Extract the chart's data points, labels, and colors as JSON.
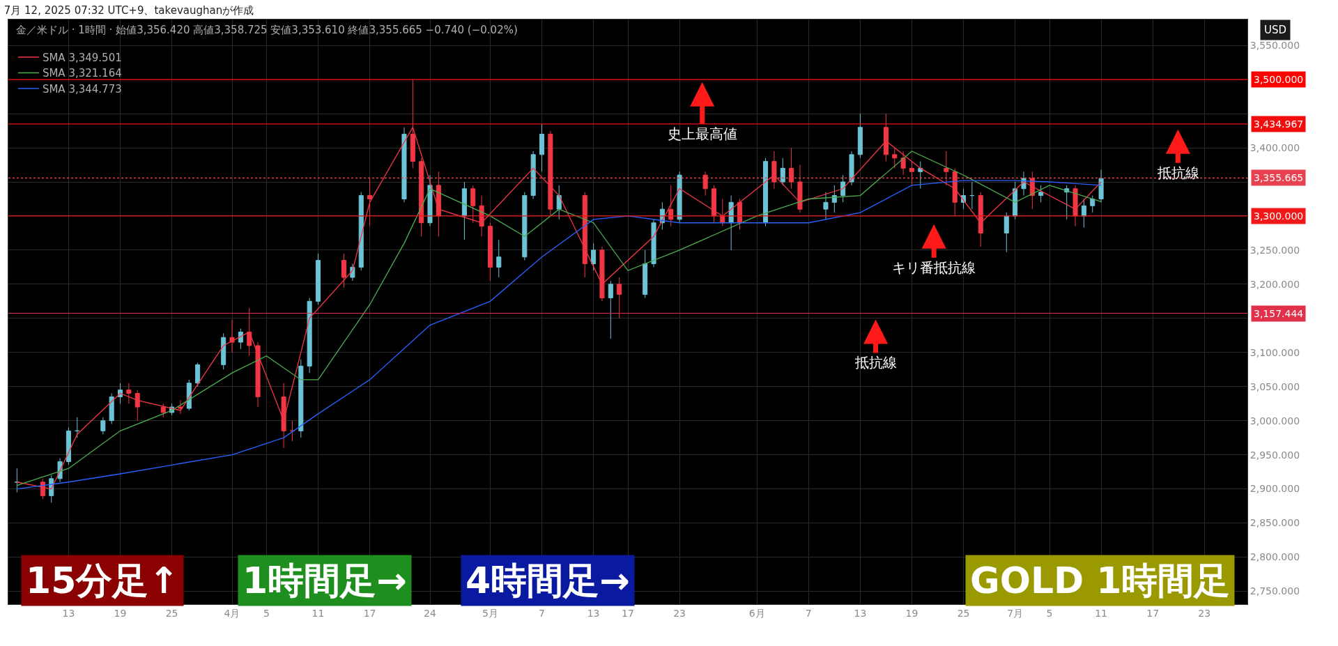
{
  "chart_data": {
    "type": "candlestick",
    "title": "7月 12, 2025 07:32 UTC+9、takevaughanが作成",
    "subtitle": "金／米ドル · 1時間 · 始値3,356.420 高値3,358.725 安値3,353.610 終値3,355.665 −0.740 (−0.02%)",
    "ylabel": "USD",
    "x": [
      "2025-03-07",
      "2025-03-10",
      "2025-03-11",
      "2025-03-12",
      "2025-03-13",
      "2025-03-14",
      "2025-03-17",
      "2025-03-18",
      "2025-03-19",
      "2025-03-20",
      "2025-03-21",
      "2025-03-24",
      "2025-03-25",
      "2025-03-26",
      "2025-03-27",
      "2025-03-28",
      "2025-03-31",
      "2025-04-01",
      "2025-04-02",
      "2025-04-03",
      "2025-04-04",
      "2025-04-07",
      "2025-04-08",
      "2025-04-09",
      "2025-04-10",
      "2025-04-11",
      "2025-04-14",
      "2025-04-15",
      "2025-04-16",
      "2025-04-17",
      "2025-04-21",
      "2025-04-22",
      "2025-04-23",
      "2025-04-24",
      "2025-04-25",
      "2025-04-28",
      "2025-04-29",
      "2025-04-30",
      "2025-05-01",
      "2025-05-02",
      "2025-05-05",
      "2025-05-06",
      "2025-05-07",
      "2025-05-08",
      "2025-05-09",
      "2025-05-12",
      "2025-05-13",
      "2025-05-14",
      "2025-05-15",
      "2025-05-16",
      "2025-05-19",
      "2025-05-20",
      "2025-05-21",
      "2025-05-22",
      "2025-05-23",
      "2025-05-26",
      "2025-05-27",
      "2025-05-28",
      "2025-05-29",
      "2025-05-30",
      "2025-06-02",
      "2025-06-03",
      "2025-06-04",
      "2025-06-05",
      "2025-06-06",
      "2025-06-09",
      "2025-06-10",
      "2025-06-11",
      "2025-06-12",
      "2025-06-13",
      "2025-06-16",
      "2025-06-17",
      "2025-06-18",
      "2025-06-19",
      "2025-06-20",
      "2025-06-23",
      "2025-06-24",
      "2025-06-25",
      "2025-06-26",
      "2025-06-27",
      "2025-06-30",
      "2025-07-01",
      "2025-07-02",
      "2025-07-03",
      "2025-07-04",
      "2025-07-07",
      "2025-07-08",
      "2025-07-09",
      "2025-07-10",
      "2025-07-11"
    ],
    "ohlc": [
      [
        2910,
        2930,
        2895,
        2910
      ],
      [
        2910,
        2915,
        2885,
        2890
      ],
      [
        2890,
        2920,
        2880,
        2915
      ],
      [
        2915,
        2945,
        2910,
        2940
      ],
      [
        2940,
        2990,
        2935,
        2985
      ],
      [
        2985,
        3005,
        2975,
        2985
      ],
      [
        2985,
        3005,
        2980,
        3000
      ],
      [
        3000,
        3040,
        2995,
        3035
      ],
      [
        3035,
        3055,
        3025,
        3045
      ],
      [
        3045,
        3055,
        3025,
        3040
      ],
      [
        3040,
        3045,
        3000,
        3020
      ],
      [
        3020,
        3025,
        3005,
        3012
      ],
      [
        3012,
        3025,
        3008,
        3020
      ],
      [
        3020,
        3030,
        3010,
        3018
      ],
      [
        3018,
        3060,
        3015,
        3055
      ],
      [
        3055,
        3085,
        3050,
        3082
      ],
      [
        3082,
        3128,
        3075,
        3122
      ],
      [
        3122,
        3148,
        3100,
        3115
      ],
      [
        3115,
        3135,
        3105,
        3130
      ],
      [
        3130,
        3165,
        3095,
        3110
      ],
      [
        3110,
        3115,
        3020,
        3035
      ],
      [
        3035,
        3055,
        2960,
        2985
      ],
      [
        2985,
        3000,
        2970,
        2985
      ],
      [
        2985,
        3090,
        2975,
        3080
      ],
      [
        3080,
        3180,
        3070,
        3175
      ],
      [
        3175,
        3245,
        3170,
        3235
      ],
      [
        3235,
        3245,
        3195,
        3210
      ],
      [
        3210,
        3230,
        3205,
        3225
      ],
      [
        3225,
        3335,
        3220,
        3330
      ],
      [
        3330,
        3355,
        3285,
        3325
      ],
      [
        3325,
        3430,
        3320,
        3420
      ],
      [
        3420,
        3500,
        3370,
        3380
      ],
      [
        3380,
        3385,
        3270,
        3290
      ],
      [
        3290,
        3360,
        3285,
        3345
      ],
      [
        3345,
        3365,
        3270,
        3300
      ],
      [
        3300,
        3350,
        3265,
        3340
      ],
      [
        3340,
        3345,
        3290,
        3315
      ],
      [
        3315,
        3330,
        3270,
        3285
      ],
      [
        3285,
        3290,
        3205,
        3225
      ],
      [
        3225,
        3265,
        3210,
        3240
      ],
      [
        3240,
        3335,
        3235,
        3330
      ],
      [
        3330,
        3395,
        3325,
        3390
      ],
      [
        3390,
        3435,
        3365,
        3420
      ],
      [
        3420,
        3425,
        3300,
        3310
      ],
      [
        3310,
        3345,
        3295,
        3330
      ],
      [
        3330,
        3335,
        3210,
        3230
      ],
      [
        3230,
        3260,
        3220,
        3250
      ],
      [
        3250,
        3255,
        3175,
        3180
      ],
      [
        3180,
        3205,
        3120,
        3200
      ],
      [
        3200,
        3210,
        3150,
        3185
      ],
      [
        3185,
        3250,
        3180,
        3230
      ],
      [
        3230,
        3295,
        3225,
        3290
      ],
      [
        3290,
        3320,
        3280,
        3310
      ],
      [
        3310,
        3345,
        3285,
        3295
      ],
      [
        3295,
        3365,
        3290,
        3360
      ],
      [
        3360,
        3365,
        3330,
        3340
      ],
      [
        3340,
        3345,
        3290,
        3300
      ],
      [
        3300,
        3325,
        3285,
        3290
      ],
      [
        3290,
        3330,
        3250,
        3320
      ],
      [
        3320,
        3325,
        3280,
        3290
      ],
      [
        3290,
        3385,
        3285,
        3380
      ],
      [
        3380,
        3395,
        3340,
        3350
      ],
      [
        3350,
        3385,
        3345,
        3370
      ],
      [
        3370,
        3400,
        3340,
        3350
      ],
      [
        3350,
        3375,
        3305,
        3310
      ],
      [
        3310,
        3335,
        3295,
        3320
      ],
      [
        3320,
        3345,
        3305,
        3330
      ],
      [
        3330,
        3360,
        3320,
        3350
      ],
      [
        3350,
        3395,
        3345,
        3390
      ],
      [
        3390,
        3450,
        3385,
        3430
      ],
      [
        3430,
        3450,
        3380,
        3390
      ],
      [
        3390,
        3400,
        3370,
        3385
      ],
      [
        3385,
        3395,
        3360,
        3370
      ],
      [
        3370,
        3380,
        3345,
        3365
      ],
      [
        3365,
        3380,
        3340,
        3370
      ],
      [
        3370,
        3395,
        3345,
        3365
      ],
      [
        3365,
        3370,
        3300,
        3320
      ],
      [
        3320,
        3340,
        3310,
        3330
      ],
      [
        3330,
        3350,
        3310,
        3330
      ],
      [
        3330,
        3335,
        3255,
        3275
      ],
      [
        3275,
        3305,
        3247,
        3300
      ],
      [
        3300,
        3350,
        3295,
        3340
      ],
      [
        3340,
        3365,
        3330,
        3355
      ],
      [
        3355,
        3365,
        3310,
        3330
      ],
      [
        3330,
        3345,
        3320,
        3335
      ],
      [
        3335,
        3345,
        3295,
        3340
      ],
      [
        3340,
        3345,
        3285,
        3300
      ],
      [
        3300,
        3325,
        3283,
        3315
      ],
      [
        3315,
        3330,
        3305,
        3325
      ],
      [
        3325,
        3368,
        3320,
        3355
      ]
    ],
    "series": [
      {
        "name": "SMA 3,349.501",
        "type": "line",
        "color": "#f23645",
        "x": [
          "2025-03-07",
          "2025-03-11",
          "2025-03-14",
          "2025-03-19",
          "2025-03-21",
          "2025-03-26",
          "2025-03-31",
          "2025-04-03",
          "2025-04-07",
          "2025-04-10",
          "2025-04-15",
          "2025-04-17",
          "2025-04-22",
          "2025-04-25",
          "2025-04-30",
          "2025-05-06",
          "2025-05-09",
          "2025-05-14",
          "2025-05-20",
          "2025-05-23",
          "2025-05-28",
          "2025-06-03",
          "2025-06-06",
          "2025-06-11",
          "2025-06-16",
          "2025-06-20",
          "2025-06-24",
          "2025-06-27",
          "2025-07-02",
          "2025-07-08",
          "2025-07-11"
        ],
        "values": [
          2910,
          2900,
          2980,
          3040,
          3030,
          3015,
          3110,
          3130,
          3000,
          3150,
          3220,
          3320,
          3430,
          3310,
          3290,
          3370,
          3330,
          3200,
          3270,
          3340,
          3300,
          3360,
          3320,
          3340,
          3410,
          3370,
          3340,
          3290,
          3350,
          3310,
          3350
        ]
      },
      {
        "name": "SMA 3,321.164",
        "type": "line",
        "color": "#4caf50",
        "x": [
          "2025-03-07",
          "2025-03-13",
          "2025-03-19",
          "2025-03-25",
          "2025-04-01",
          "2025-04-05",
          "2025-04-09",
          "2025-04-11",
          "2025-04-17",
          "2025-04-21",
          "2025-04-24",
          "2025-05-01",
          "2025-05-05",
          "2025-05-09",
          "2025-05-13",
          "2025-05-17",
          "2025-05-23",
          "2025-06-01",
          "2025-06-07",
          "2025-06-13",
          "2025-06-19",
          "2025-06-25",
          "2025-07-01",
          "2025-07-05",
          "2025-07-11"
        ],
        "values": [
          2905,
          2930,
          2985,
          3015,
          3070,
          3095,
          3060,
          3060,
          3170,
          3260,
          3340,
          3300,
          3270,
          3310,
          3290,
          3220,
          3250,
          3300,
          3325,
          3330,
          3395,
          3360,
          3320,
          3345,
          3321
        ]
      },
      {
        "name": "SMA 3,344.773",
        "type": "line",
        "color": "#2962ff",
        "x": [
          "2025-03-07",
          "2025-03-13",
          "2025-03-19",
          "2025-03-25",
          "2025-04-01",
          "2025-04-07",
          "2025-04-11",
          "2025-04-17",
          "2025-04-24",
          "2025-05-01",
          "2025-05-07",
          "2025-05-13",
          "2025-05-17",
          "2025-05-23",
          "2025-06-01",
          "2025-06-07",
          "2025-06-13",
          "2025-06-19",
          "2025-06-25",
          "2025-07-01",
          "2025-07-05",
          "2025-07-11"
        ],
        "values": [
          2900,
          2910,
          2922,
          2935,
          2950,
          2975,
          3010,
          3060,
          3140,
          3175,
          3240,
          3295,
          3300,
          3290,
          3290,
          3290,
          3305,
          3345,
          3352,
          3352,
          3350,
          3345
        ]
      }
    ],
    "xlim": [
      "2025-03-06",
      "2025-07-28"
    ],
    "xticks": [
      {
        "value": "2025-03-13",
        "label": "13"
      },
      {
        "value": "2025-03-19",
        "label": "19"
      },
      {
        "value": "2025-03-25",
        "label": "25"
      },
      {
        "value": "2025-04-01",
        "label": "4月"
      },
      {
        "value": "2025-04-05",
        "label": "5"
      },
      {
        "value": "2025-04-11",
        "label": "11"
      },
      {
        "value": "2025-04-17",
        "label": "17"
      },
      {
        "value": "2025-04-24",
        "label": "24"
      },
      {
        "value": "2025-05-01",
        "label": "5月"
      },
      {
        "value": "2025-05-07",
        "label": "7"
      },
      {
        "value": "2025-05-13",
        "label": "13"
      },
      {
        "value": "2025-05-17",
        "label": "17"
      },
      {
        "value": "2025-05-23",
        "label": "23"
      },
      {
        "value": "2025-06-01",
        "label": "6月"
      },
      {
        "value": "2025-06-07",
        "label": "7"
      },
      {
        "value": "2025-06-13",
        "label": "13"
      },
      {
        "value": "2025-06-19",
        "label": "19"
      },
      {
        "value": "2025-06-25",
        "label": "25"
      },
      {
        "value": "2025-07-01",
        "label": "7月"
      },
      {
        "value": "2025-07-05",
        "label": "5"
      },
      {
        "value": "2025-07-11",
        "label": "11"
      },
      {
        "value": "2025-07-17",
        "label": "17"
      },
      {
        "value": "2025-07-23",
        "label": "23"
      }
    ],
    "ylim": [
      2731,
      3588
    ],
    "yticks": [
      {
        "value": 2750,
        "label": "2,750.000"
      },
      {
        "value": 2800,
        "label": "2,800.000"
      },
      {
        "value": 2850,
        "label": "2,850.000"
      },
      {
        "value": 2900,
        "label": "2,900.000"
      },
      {
        "value": 2950,
        "label": "2,950.000"
      },
      {
        "value": 3000,
        "label": "3,000.000"
      },
      {
        "value": 3050,
        "label": "3,050.000"
      },
      {
        "value": 3100,
        "label": "3,100.000"
      },
      {
        "value": 3150,
        "label": null
      },
      {
        "value": 3200,
        "label": "3,200.000"
      },
      {
        "value": 3250,
        "label": "3,250.000"
      },
      {
        "value": 3300,
        "label": null
      },
      {
        "value": 3350,
        "label": null
      },
      {
        "value": 3400,
        "label": "3,400.000"
      },
      {
        "value": 3450,
        "label": null
      },
      {
        "value": 3500,
        "label": null
      },
      {
        "value": 3550,
        "label": "3,550.000"
      }
    ],
    "ref_lines": [
      {
        "axis": "y",
        "value": 3500,
        "label": "3,500.000",
        "color": "#ff0000"
      },
      {
        "axis": "y",
        "value": 3434.967,
        "label": "3,434.967",
        "color": "#f20d0d"
      },
      {
        "axis": "y",
        "value": 3355.665,
        "label": "3,355.665",
        "color": "#e8414f",
        "line_style": "dotted"
      },
      {
        "axis": "y",
        "value": 3300,
        "label": "3,300.000",
        "color": "#f01818"
      },
      {
        "axis": "y",
        "value": 3157.444,
        "label": "3,157.444",
        "color": "#e0304a"
      }
    ],
    "annotations": [
      "史上最高値",
      "キリ番抵抗線",
      "抵抗線",
      "抵抗線",
      "15分足↑",
      "1時間足→",
      "4時間足→",
      "GOLD 1時間足"
    ],
    "grid": true,
    "legend": "top left"
  }
}
